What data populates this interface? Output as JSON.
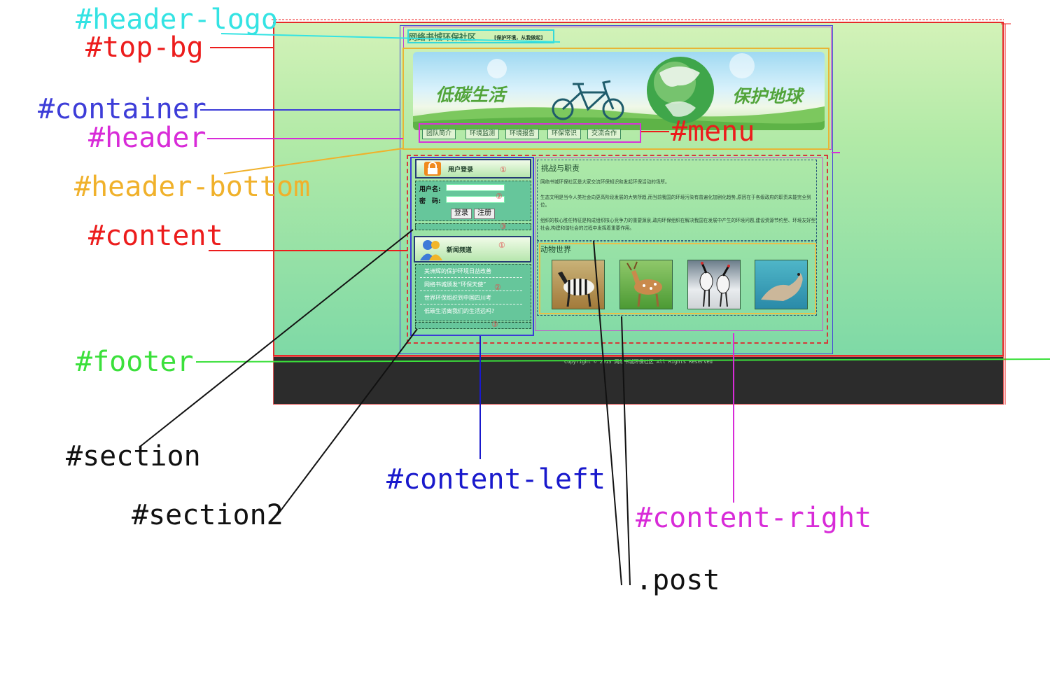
{
  "annotations": [
    {
      "label": "#header-logo",
      "color": "#34e3e3"
    },
    {
      "label": "#top-bg",
      "color": "#ec1c1c"
    },
    {
      "label": "#container",
      "color": "#3d3dd8"
    },
    {
      "label": "#header",
      "color": "#d82bd8"
    },
    {
      "label": "#header-bottom",
      "color": "#f0b12b"
    },
    {
      "label": "#menu",
      "color": "#ec1c1c"
    },
    {
      "label": "#content",
      "color": "#ec1c1c"
    },
    {
      "label": "#footer",
      "color": "#3be03b"
    },
    {
      "label": "#section",
      "color": "#111111"
    },
    {
      "label": "#section2",
      "color": "#111111"
    },
    {
      "label": "#content-left",
      "color": "#1919cc"
    },
    {
      "label": "#content-right",
      "color": "#d82bd8"
    },
    {
      "label": ".post",
      "color": "#111111"
    }
  ],
  "site": {
    "logo_title": "网络书城环保社区",
    "logo_subtitle": "[保护环境，从我做起]",
    "banner_left": "低碳生活",
    "banner_right": "保护地球",
    "menu": [
      "团队简介",
      "环境监测",
      "环境报告",
      "环保常识",
      "交流合作"
    ],
    "login": {
      "title": "用户登录",
      "username_label": "用户名:",
      "password_label": "密　码:",
      "login_button": "登录",
      "register_button": "注册"
    },
    "news": {
      "title": "新闻频道",
      "items": [
        "美洲辉的保护环境日益改善",
        "网络书城颁发“环保天使”",
        "世界环保组织到中国四川考",
        "低碳生活离我们的生活远吗?"
      ]
    },
    "post1": {
      "title": "挑战与职责",
      "paragraphs": [
        "网络书城环保社区是大家交流环保知识和发起环保活动的场所。",
        "生态文明是当今人类社会向更高阶段发展的大势所趋,而当前我国的环境污染有普遍化加剧化趋势,原因在于各级政府的职责未能完全到位。",
        "组织的核心胜任特征是构成组织核心竞争力的重要源泉,政府环保组织在解决我国在发展中产生的环境问题,建设资源节约型、环境友好型社会,构建和谐社会的过程中发挥着重要作用。"
      ]
    },
    "post2": {
      "title": "动物世界"
    },
    "footer": "Copyright © 2013 网络书城环保社区 All Rights Reserved",
    "circle_marks": [
      "①",
      "②",
      "③",
      "①",
      "②",
      "③"
    ]
  }
}
